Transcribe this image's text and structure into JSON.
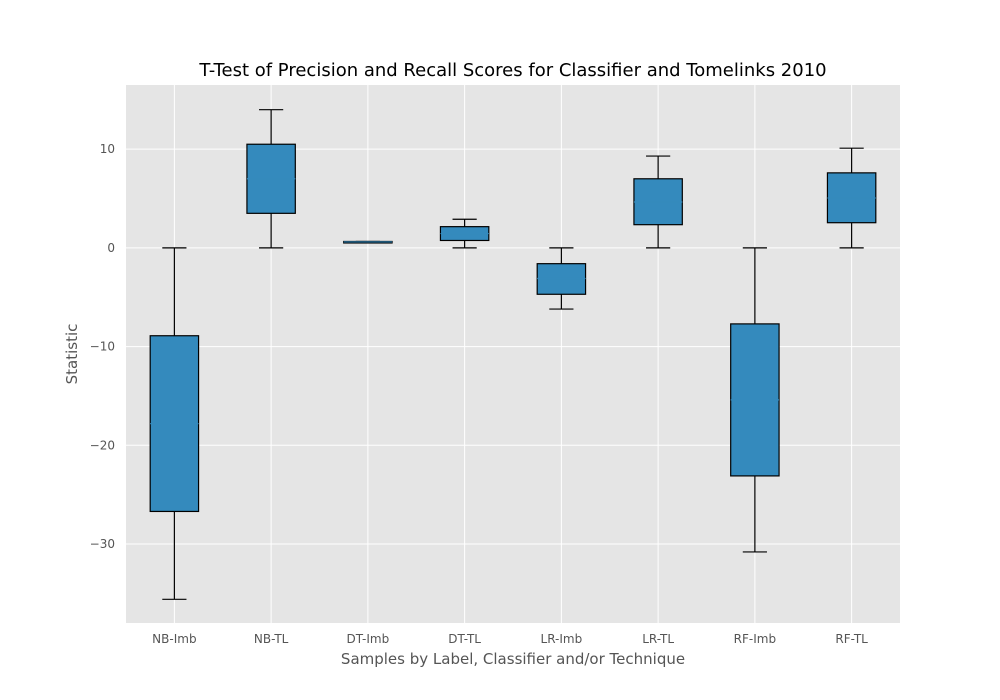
{
  "chart_data": {
    "type": "box",
    "title": "T-Test of Precision and Recall Scores for Classifier and Tomelinks 2010",
    "xlabel": "Samples by Label, Classifier and/or Technique",
    "ylabel": "Statistic",
    "ylim": [
      -38.0,
      16.5
    ],
    "yticks": [
      10,
      0,
      -10,
      -20,
      -30
    ],
    "ytick_labels": [
      "10",
      "0",
      "−10",
      "−20",
      "−30"
    ],
    "grid": true,
    "categories": [
      "NB-Imb",
      "NB-TL",
      "DT-Imb",
      "DT-TL",
      "LR-Imb",
      "LR-TL",
      "RF-Imb",
      "RF-TL"
    ],
    "boxes": [
      {
        "whisker_low": -35.6,
        "q1": -26.7,
        "median": -17.8,
        "q3": -8.9,
        "whisker_high": 0.0
      },
      {
        "whisker_low": 0.0,
        "q1": 3.5,
        "median": 7.0,
        "q3": 10.5,
        "whisker_high": 14.0
      },
      {
        "whisker_low": 0.55,
        "q1": 0.55,
        "median": 0.6,
        "q3": 0.65,
        "whisker_high": 0.65
      },
      {
        "whisker_low": 0.0,
        "q1": 0.75,
        "median": 1.45,
        "q3": 2.15,
        "whisker_high": 2.9
      },
      {
        "whisker_low": -6.2,
        "q1": -4.7,
        "median": -3.1,
        "q3": -1.6,
        "whisker_high": 0.0
      },
      {
        "whisker_low": 0.0,
        "q1": 2.35,
        "median": 4.65,
        "q3": 7.0,
        "whisker_high": 9.3
      },
      {
        "whisker_low": -30.8,
        "q1": -23.1,
        "median": -15.4,
        "q3": -7.7,
        "whisker_high": 0.0
      },
      {
        "whisker_low": 0.0,
        "q1": 2.55,
        "median": 5.05,
        "q3": 7.6,
        "whisker_high": 10.1
      }
    ],
    "colors": {
      "box_fill": "#348ABD",
      "box_edge": "#000000",
      "median": "#348ABD",
      "plot_background": "#E5E5E5",
      "grid": "#FFFFFF"
    }
  }
}
